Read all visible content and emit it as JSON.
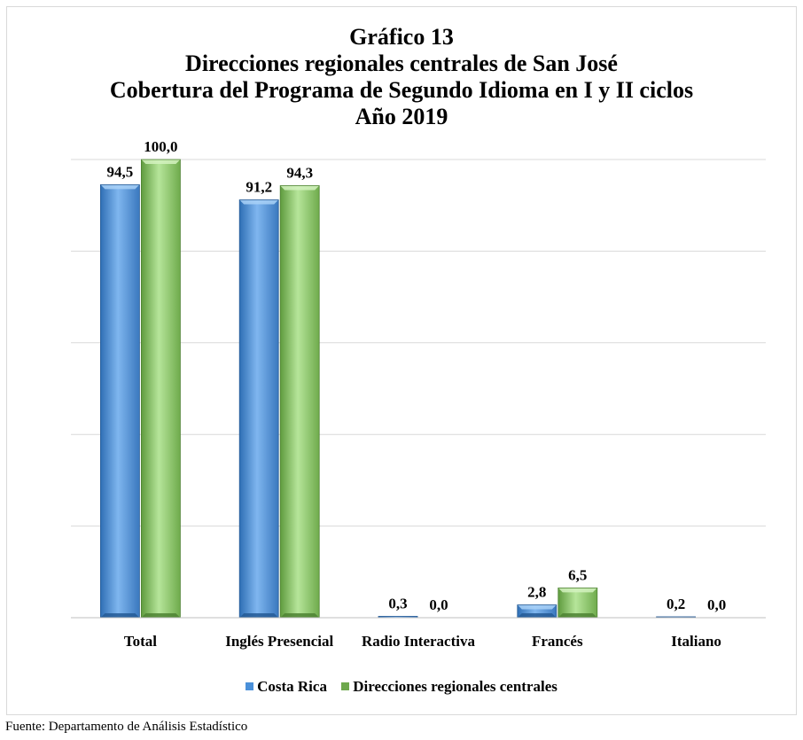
{
  "titles": {
    "line1": "Gráfico 13",
    "line2": "Direcciones regionales centrales de San José",
    "line3": "Cobertura  del Programa de Segundo Idioma en I y II ciclos",
    "line4": "Año 2019"
  },
  "source": "Fuente: Departamento de Análisis Estadístico",
  "chart_data": {
    "type": "bar",
    "categories": [
      "Total",
      "Inglés Presencial",
      "Radio Interactiva",
      "Francés",
      "Italiano"
    ],
    "series": [
      {
        "name": "Costa Rica",
        "values": [
          94.5,
          91.2,
          0.3,
          2.8,
          0.2
        ],
        "labels": [
          "94,5",
          "91,2",
          "0,3",
          "2,8",
          "0,2"
        ],
        "color": "#4a90d9"
      },
      {
        "name": "Direcciones regionales centrales",
        "values": [
          100.0,
          94.3,
          0.0,
          6.5,
          0.0
        ],
        "labels": [
          "100,0",
          "94,3",
          "0,0",
          "6,5",
          "0,0"
        ],
        "color": "#8fcf6a"
      }
    ],
    "ylim": [
      0,
      100
    ],
    "grid": true,
    "legend_position": "bottom"
  }
}
